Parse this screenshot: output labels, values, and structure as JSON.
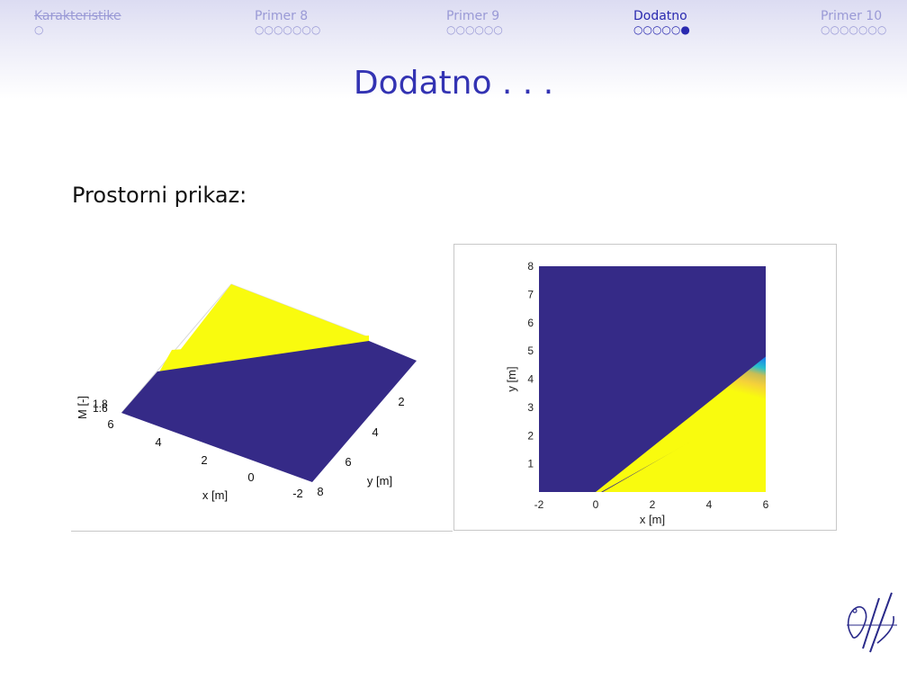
{
  "nav": {
    "sections": [
      {
        "label": "Karakteristike",
        "dots": "○"
      },
      {
        "label": "Primer 8",
        "dots": "○○○○○○○"
      },
      {
        "label": "Primer 9",
        "dots": "○○○○○○"
      },
      {
        "label": "Dodatno",
        "dots": "○○○○○●"
      },
      {
        "label": "Primer 10",
        "dots": "○○○○○○○"
      }
    ]
  },
  "slide": {
    "title": "Dodatno . . .",
    "text": "Prostorni prikaz:"
  },
  "colors": {
    "nav_inactive": "#9a9ad6",
    "nav_active": "#2a2ab0",
    "title": "#3333b3",
    "surface_low": "#352a87",
    "surface_high": "#f9fb0e"
  },
  "chart_data": [
    {
      "type": "surface",
      "view": "3d",
      "xlabel": "x [m]",
      "ylabel": "y [m]",
      "zlabel": "M [-]",
      "x_ticks": [
        "6",
        "4",
        "2",
        "0",
        "-2"
      ],
      "y_ticks": [
        "2",
        "4",
        "6",
        "8"
      ],
      "z_ticks": [
        "1.8",
        "1.6"
      ],
      "colormap": "parula"
    },
    {
      "type": "heatmap",
      "view": "top",
      "xlabel": "x [m]",
      "ylabel": "y [m]",
      "xlim": [
        -2,
        6
      ],
      "ylim": [
        0,
        8
      ],
      "x_ticks": [
        "-2",
        "0",
        "2",
        "4",
        "6"
      ],
      "y_ticks": [
        "1",
        "2",
        "3",
        "4",
        "5",
        "6",
        "7",
        "8"
      ],
      "boundary": [
        [
          0,
          0
        ],
        [
          6,
          4.8
        ]
      ],
      "colormap": "parula"
    }
  ]
}
